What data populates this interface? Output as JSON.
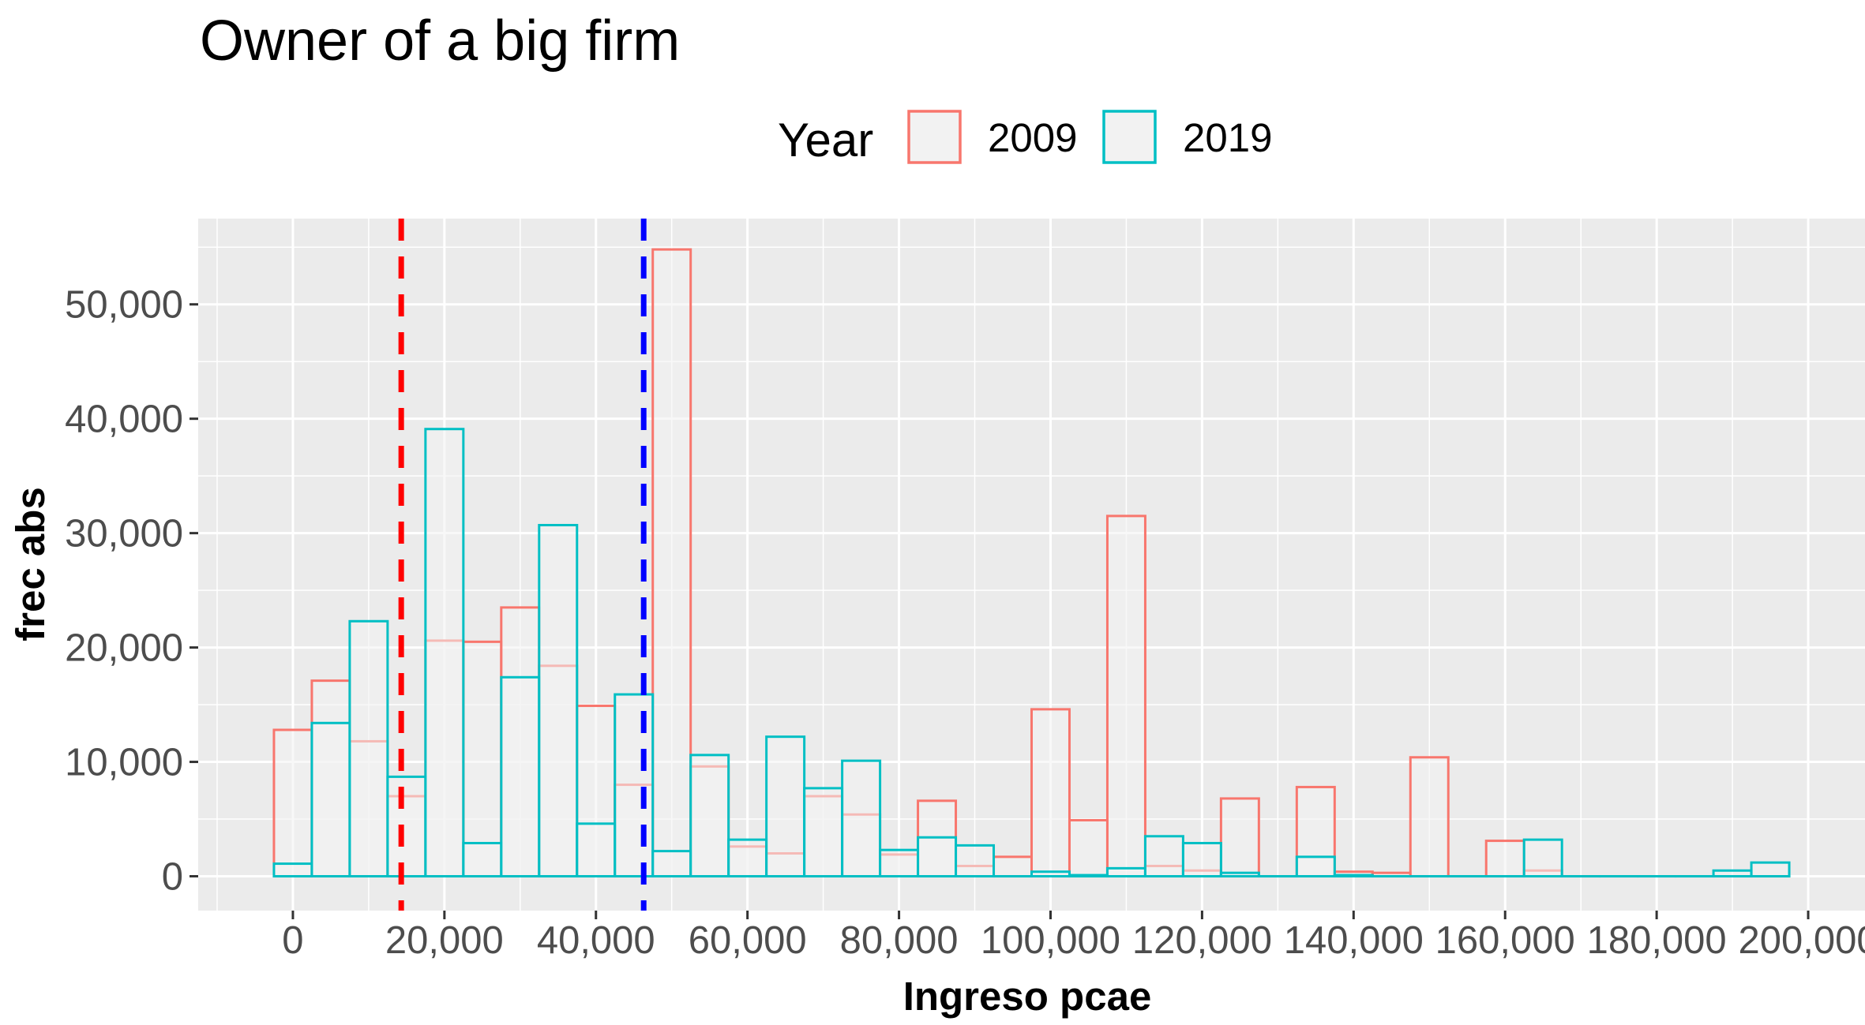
{
  "chart_data": {
    "type": "bar",
    "title": "Owner of a big firm",
    "xlabel": "Ingreso pcae",
    "ylabel": "frec abs",
    "xlim": [
      -12500,
      207500
    ],
    "ylim": [
      -3000,
      57500
    ],
    "x_ticks": [
      0,
      20000,
      40000,
      60000,
      80000,
      100000,
      120000,
      140000,
      160000,
      180000,
      200000
    ],
    "x_tick_labels": [
      "0",
      "20,000",
      "40,000",
      "60,000",
      "80,000",
      "100,000",
      "120,000",
      "140,000",
      "160,000",
      "180,000",
      "200,000"
    ],
    "y_ticks": [
      0,
      10000,
      20000,
      30000,
      40000,
      50000
    ],
    "y_tick_labels": [
      "0",
      "10,000",
      "20,000",
      "30,000",
      "40,000",
      "50,000"
    ],
    "grid": true,
    "legend": {
      "title": "Year",
      "position": "top",
      "entries": [
        {
          "label": "2009",
          "color": "#F8766D"
        },
        {
          "label": "2019",
          "color": "#00BFC4"
        }
      ]
    },
    "bin_width": 5000,
    "bin_centers": [
      0,
      5000,
      10000,
      15000,
      20000,
      25000,
      30000,
      35000,
      40000,
      45000,
      50000,
      55000,
      60000,
      65000,
      70000,
      75000,
      80000,
      85000,
      90000,
      95000,
      100000,
      105000,
      110000,
      115000,
      120000,
      125000,
      130000,
      135000,
      140000,
      145000,
      150000,
      155000,
      160000,
      165000,
      170000,
      175000,
      180000,
      185000,
      190000,
      195000
    ],
    "series": [
      {
        "name": "2009",
        "color": "#F8766D",
        "values": [
          12800,
          17100,
          11800,
          7000,
          20600,
          20500,
          23500,
          18400,
          14900,
          8000,
          54800,
          9600,
          2600,
          2000,
          7000,
          5400,
          1900,
          6600,
          900,
          1700,
          14600,
          4900,
          31500,
          900,
          500,
          6800,
          0,
          7800,
          400,
          300,
          10400,
          0,
          3100,
          500,
          0,
          0,
          0,
          0,
          0,
          0
        ]
      },
      {
        "name": "2019",
        "color": "#00BFC4",
        "values": [
          1100,
          13400,
          22300,
          8700,
          39100,
          2900,
          17400,
          30700,
          4600,
          15900,
          2200,
          10600,
          3200,
          12200,
          7700,
          10100,
          2300,
          3400,
          2700,
          0,
          400,
          100,
          700,
          3500,
          2900,
          300,
          0,
          1700,
          100,
          0,
          0,
          0,
          0,
          3200,
          0,
          0,
          0,
          0,
          500,
          1200
        ]
      }
    ],
    "reference_lines": [
      {
        "x": 14300,
        "color": "#FF0000",
        "style": "dashed"
      },
      {
        "x": 46300,
        "color": "#0000FF",
        "style": "dashed"
      }
    ],
    "panel_background": "#EBEBEB",
    "bar_fill": "#F2F2F2"
  }
}
